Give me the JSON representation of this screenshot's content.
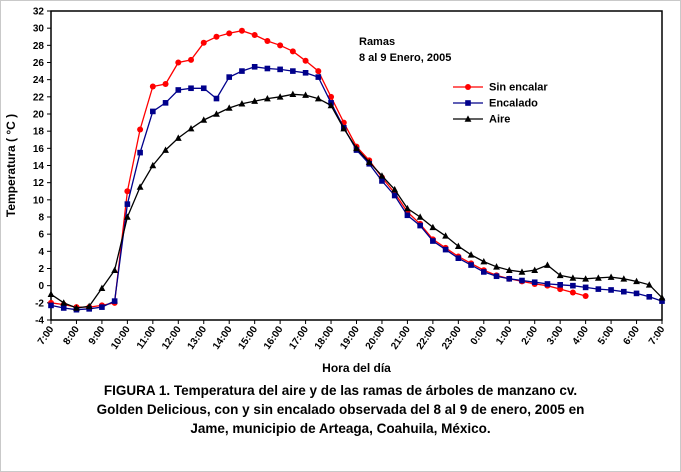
{
  "figure": {
    "annotation_line1": "Ramas",
    "annotation_line2": "8 al 9 Enero, 2005",
    "caption": "FIGURA 1. Temperatura del aire y de las ramas de árboles de manzano cv. Golden Delicious, con y sin encalado observada del 8 al 9 de enero, 2005 en Jame, municipio de Arteaga, Coahuila, México."
  },
  "chart_data": {
    "type": "line",
    "title": "",
    "xlabel": "Hora del día",
    "ylabel": "Temperatura ( °C )",
    "ylim": [
      -4,
      32
    ],
    "ytick_step": 2,
    "grid": false,
    "legend_position": "inside-right",
    "x_points_per_hour": 2,
    "x_tick_labels": [
      "7:00",
      "8:00",
      "9:00",
      "10:00",
      "11:00",
      "12:00",
      "13:00",
      "14:00",
      "15:00",
      "16:00",
      "17:00",
      "18:00",
      "19:00",
      "20:00",
      "21:00",
      "22:00",
      "23:00",
      "0:00",
      "1:00",
      "2:00",
      "3:00",
      "4:00",
      "5:00",
      "6:00",
      "7:00"
    ],
    "series": [
      {
        "name": "Sin encalar",
        "color": "#ff0000",
        "marker": "circle",
        "values": [
          -2,
          -2.2,
          -2.5,
          -2.5,
          -2.3,
          -2,
          11,
          18.2,
          23.2,
          23.5,
          26,
          26.3,
          28.3,
          29,
          29.4,
          29.7,
          29.2,
          28.5,
          28,
          27.3,
          26.2,
          25,
          22,
          19,
          16.2,
          14.6,
          12.6,
          10.8,
          8.6,
          7.2,
          5.4,
          4.4,
          3.4,
          2.6,
          1.8,
          1.2,
          0.8,
          0.5,
          0.2,
          0,
          -0.4,
          -0.8,
          -1.2,
          null,
          null,
          null,
          null,
          null,
          null
        ]
      },
      {
        "name": "Encalado",
        "color": "#00008b",
        "marker": "square",
        "values": [
          -2.3,
          -2.6,
          -2.8,
          -2.7,
          -2.5,
          -1.8,
          9.5,
          15.5,
          20.3,
          21.3,
          22.8,
          23,
          23,
          21.8,
          24.3,
          25,
          25.5,
          25.3,
          25.2,
          25,
          24.8,
          24.3,
          21.3,
          18.4,
          15.8,
          14.2,
          12.2,
          10.5,
          8.2,
          7,
          5.2,
          4.2,
          3.2,
          2.4,
          1.6,
          1.1,
          0.8,
          0.6,
          0.4,
          0.2,
          0.1,
          0,
          -0.2,
          -0.4,
          -0.5,
          -0.7,
          -0.9,
          -1.3,
          -1.8
        ]
      },
      {
        "name": "Aire",
        "color": "#000000",
        "marker": "triangle",
        "values": [
          -1,
          -2,
          -2.6,
          -2.4,
          -0.3,
          1.8,
          8,
          11.5,
          14,
          15.8,
          17.2,
          18.3,
          19.3,
          20,
          20.7,
          21.2,
          21.5,
          21.8,
          22,
          22.3,
          22.2,
          21.8,
          21,
          18.3,
          16,
          14.4,
          12.8,
          11.2,
          9,
          8,
          6.8,
          5.8,
          4.6,
          3.6,
          2.8,
          2.2,
          1.8,
          1.6,
          1.8,
          2.4,
          1.2,
          0.9,
          0.8,
          0.9,
          1,
          0.8,
          0.5,
          0.1,
          -1.4
        ]
      }
    ]
  }
}
